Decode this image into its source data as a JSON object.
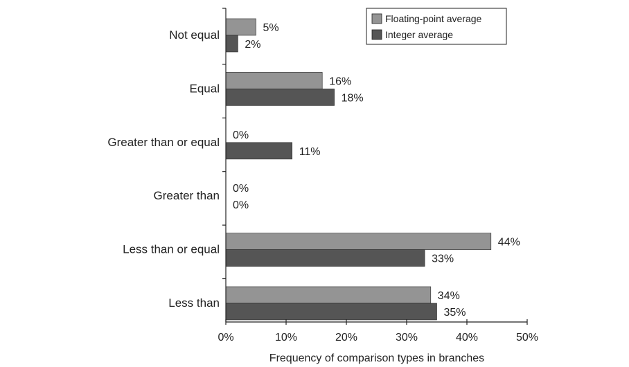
{
  "chart_data": {
    "type": "bar",
    "orientation": "horizontal",
    "categories": [
      "Not equal",
      "Equal",
      "Greater than or equal",
      "Greater than",
      "Less than or equal",
      "Less than"
    ],
    "series": [
      {
        "name": "Floating-point average",
        "color": "#949494",
        "values": [
          5,
          16,
          0,
          0,
          44,
          34
        ],
        "labels": [
          "5%",
          "16%",
          "0%",
          "0%",
          "44%",
          "34%"
        ]
      },
      {
        "name": "Integer average",
        "color": "#555555",
        "values": [
          2,
          18,
          11,
          0,
          33,
          35
        ],
        "labels": [
          "2%",
          "18%",
          "11%",
          "0%",
          "33%",
          "35%"
        ]
      }
    ],
    "xlim": [
      0,
      50
    ],
    "xticks": [
      0,
      10,
      20,
      30,
      40,
      50
    ],
    "xtick_labels": [
      "0%",
      "10%",
      "20%",
      "30%",
      "40%",
      "50%"
    ],
    "xlabel": "Frequency of comparison types in branches",
    "ylabel": "",
    "title": "",
    "grid": false,
    "legend_position": "top-right"
  }
}
